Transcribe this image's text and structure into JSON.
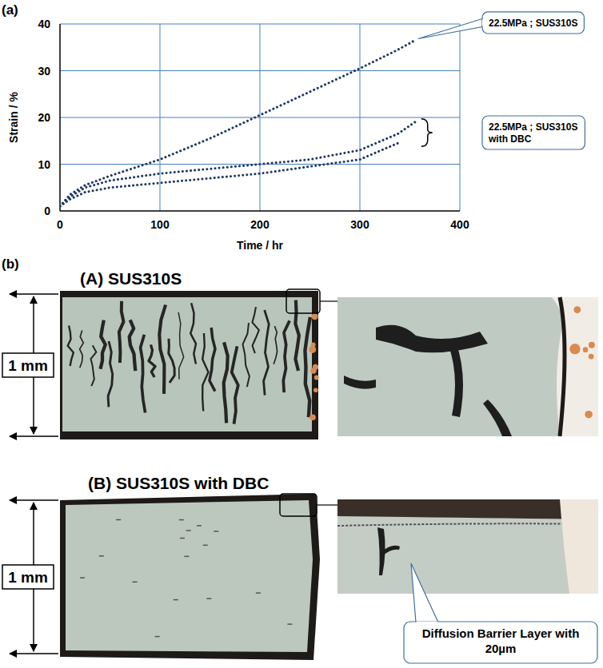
{
  "chart_data": {
    "type": "line",
    "panel_label": "(a)",
    "x_label": "Time / hr",
    "y_label": "Strain / %",
    "x": [
      0,
      10,
      25,
      50,
      100,
      150,
      200,
      250,
      300,
      338,
      355
    ],
    "series": [
      {
        "name": "22.5MPa ; SUS310S",
        "color": "#1f3864",
        "line_style": "dotted",
        "values": [
          1,
          3.5,
          5.5,
          7.5,
          11,
          15.5,
          20.5,
          25.5,
          30.5,
          34.5,
          36.5
        ]
      },
      {
        "name": "22.5MPa ; SUS310S with DBC",
        "color": "#1f3864",
        "line_style": "dotted",
        "values": [
          1,
          3,
          5,
          6.5,
          8,
          9,
          10,
          11,
          13,
          16.5,
          19
        ]
      },
      {
        "color": "#1f3864",
        "line_style": "dotted",
        "values": [
          1,
          2.5,
          4,
          5,
          6,
          7,
          8,
          9.5,
          11,
          14.5,
          null
        ]
      }
    ],
    "xlim": [
      0,
      400
    ],
    "xticks": [
      0,
      100,
      200,
      300,
      400
    ],
    "ylim": [
      0,
      40
    ],
    "yticks": [
      0,
      10,
      20,
      30,
      40
    ],
    "grid": true
  },
  "micrographs": {
    "panel_label": "(b)",
    "panels": [
      {
        "title": "(A) SUS310S",
        "scale_label": "1 mm"
      },
      {
        "title": "(B) SUS310S with DBC",
        "scale_label": "1 mm",
        "callout": "Diffusion Barrier Layer with 20µm"
      }
    ]
  }
}
